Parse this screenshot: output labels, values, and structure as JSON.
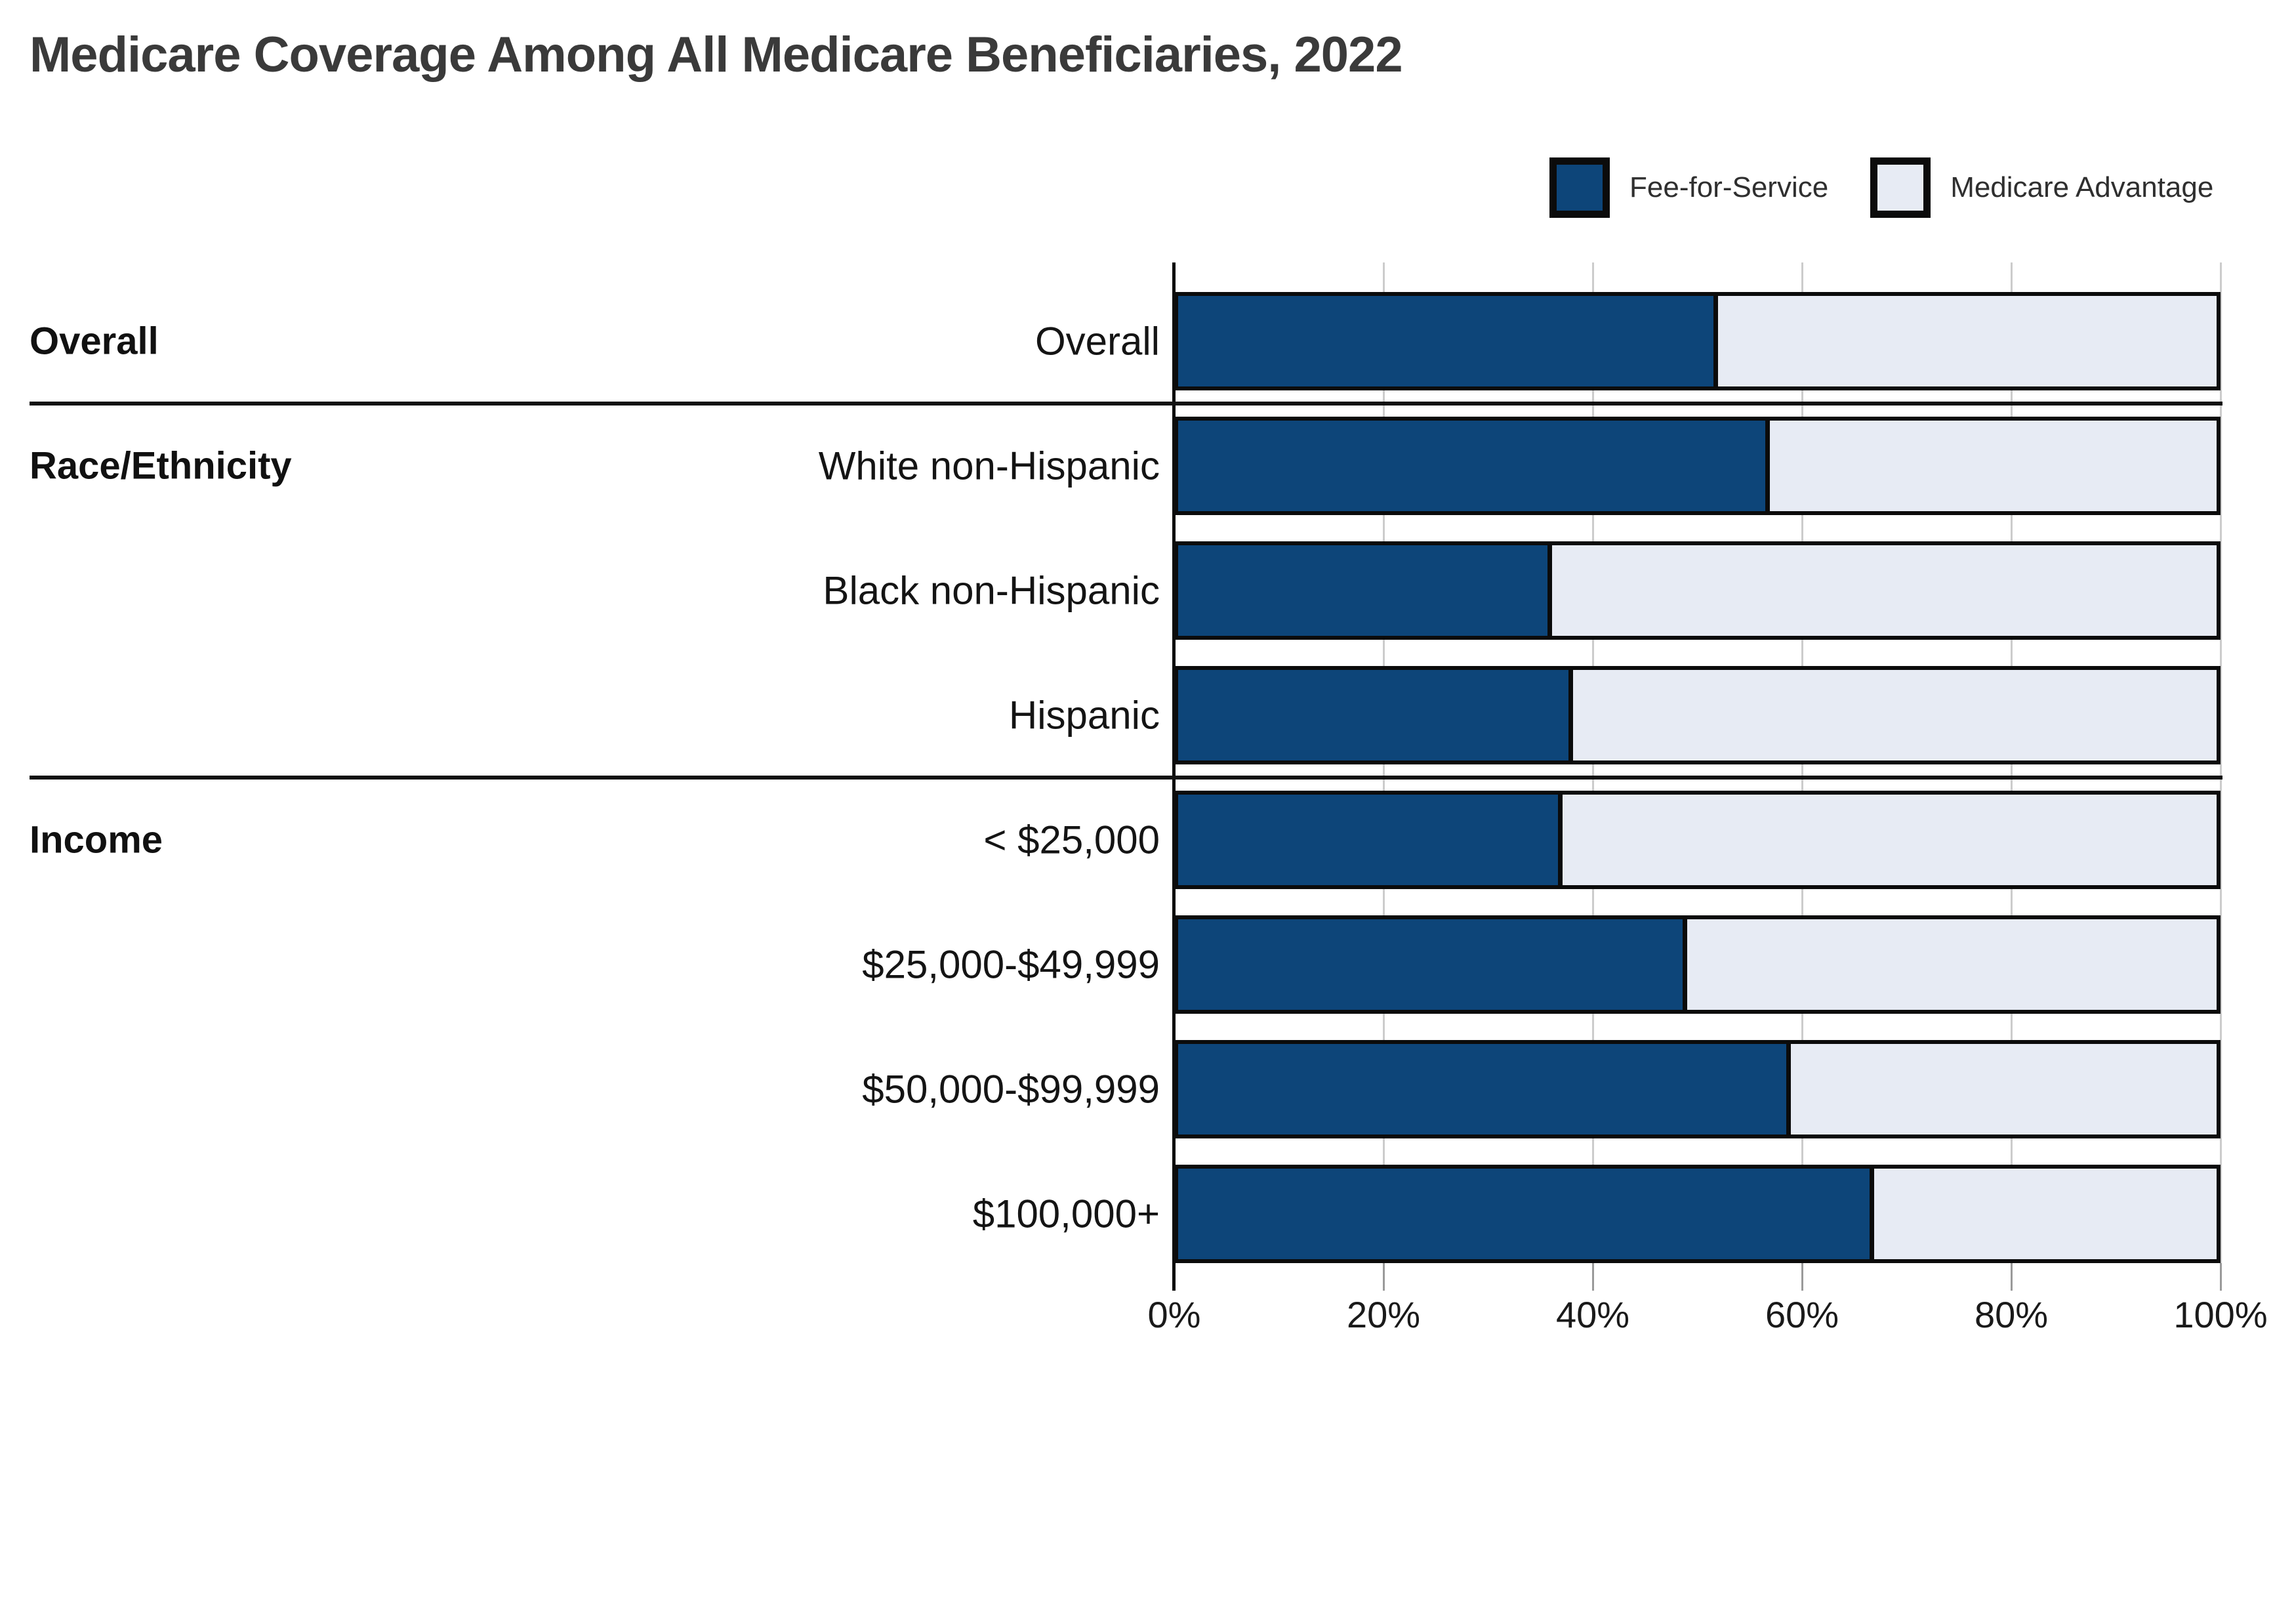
{
  "title": "Medicare Coverage Among All Medicare Beneficiaries, 2022",
  "legend": {
    "items": [
      {
        "label": "Fee-for-Service",
        "color": "#0d4579"
      },
      {
        "label": "Medicare Advantage",
        "color": "#e7ebf4"
      }
    ]
  },
  "colors": {
    "fee_for_service": "#0d4579",
    "medicare_advantage": "#e7ebf4",
    "bar_border": "#0b0b0b",
    "gridline": "#cccccc",
    "divider": "#111111",
    "title_text": "#3a3a3a",
    "label_text": "#141414"
  },
  "chart_data": {
    "type": "bar",
    "orientation": "horizontal",
    "stacked": true,
    "title": "Medicare Coverage Among All Medicare Beneficiaries, 2022",
    "xlabel": "",
    "ylabel": "",
    "xlim": [
      0,
      100
    ],
    "unit": "%",
    "grid": true,
    "legend_position": "top-right",
    "categories": [
      "Overall",
      "White non-Hispanic",
      "Black non-Hispanic",
      "Hispanic",
      "< $25,000",
      "$25,000-$49,999",
      "$50,000-$99,999",
      "$100,000+"
    ],
    "series": [
      {
        "name": "Fee-for-Service",
        "values": [
          52,
          57,
          36,
          38,
          37,
          49,
          59,
          67
        ]
      },
      {
        "name": "Medicare Advantage",
        "values": [
          48,
          43,
          64,
          62,
          63,
          51,
          41,
          33
        ]
      }
    ],
    "groups": [
      {
        "label": "Overall",
        "row_indexes": [
          0
        ]
      },
      {
        "label": "Race/Ethnicity",
        "row_indexes": [
          1,
          2,
          3
        ]
      },
      {
        "label": "Income",
        "row_indexes": [
          4,
          5,
          6,
          7
        ]
      }
    ],
    "dividers_after_rows": [
      0,
      3
    ],
    "x_ticks": [
      "0%",
      "20%",
      "40%",
      "60%",
      "80%",
      "100%"
    ]
  }
}
